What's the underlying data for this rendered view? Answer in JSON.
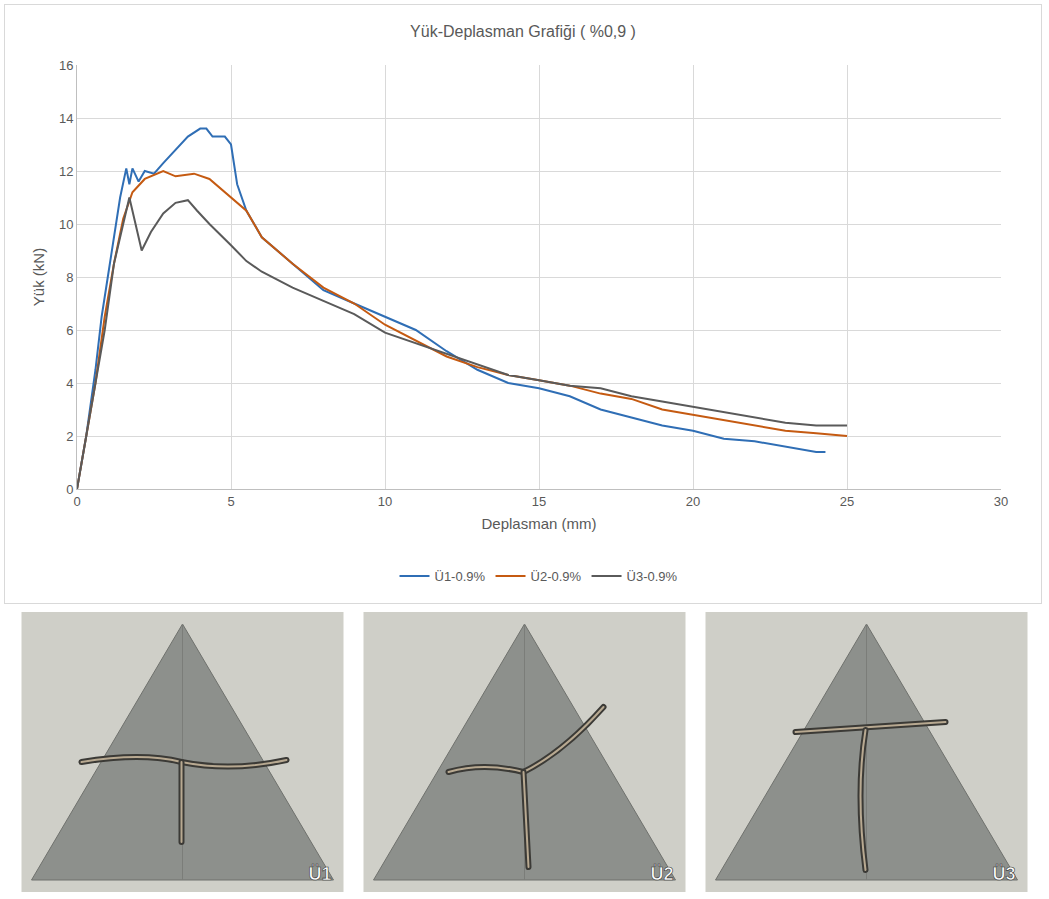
{
  "chart_data": {
    "type": "line",
    "title": "Yük-Deplasman Grafiği ( %0,9 )",
    "x_label": "Deplasman (mm)",
    "y_label": "Yük (kN)",
    "xlim": [
      0,
      30
    ],
    "xticks": [
      0,
      5,
      10,
      15,
      20,
      25,
      30
    ],
    "ylim": [
      0,
      16
    ],
    "yticks": [
      0,
      2,
      4,
      6,
      8,
      10,
      12,
      14,
      16
    ],
    "grid": true,
    "legend": "bottom",
    "series": [
      {
        "name": "Ü1-0.9%",
        "color": "#2f6eb5",
        "x": [
          0,
          0.3,
          0.6,
          0.8,
          1.0,
          1.2,
          1.4,
          1.6,
          1.7,
          1.8,
          2.0,
          2.2,
          2.5,
          2.8,
          3.2,
          3.6,
          4.0,
          4.2,
          4.4,
          4.8,
          5.0,
          5.2,
          5.5,
          6,
          7,
          8,
          9,
          10,
          11,
          12,
          13,
          14,
          15,
          16,
          17,
          18,
          19,
          20,
          21,
          22,
          23,
          24,
          24.3
        ],
        "values": [
          0,
          2,
          4.5,
          6.5,
          8,
          9.5,
          11,
          12.1,
          11.5,
          12.1,
          11.6,
          12.0,
          11.9,
          12.3,
          12.8,
          13.3,
          13.6,
          13.6,
          13.3,
          13.3,
          13.0,
          11.5,
          10.5,
          9.5,
          8.5,
          7.5,
          7.0,
          6.5,
          6.0,
          5.2,
          4.5,
          4.0,
          3.8,
          3.5,
          3.0,
          2.7,
          2.4,
          2.2,
          1.9,
          1.8,
          1.6,
          1.4,
          1.4
        ]
      },
      {
        "name": "Ü2-0.9%",
        "color": "#c55a11",
        "x": [
          0,
          0.3,
          0.6,
          0.9,
          1.2,
          1.5,
          1.8,
          2.2,
          2.8,
          3.2,
          3.8,
          4.3,
          5,
          5.5,
          6,
          7,
          8,
          9,
          10,
          11,
          12,
          13,
          14,
          15,
          16,
          17,
          18,
          19,
          20,
          21,
          22,
          23,
          24,
          25
        ],
        "values": [
          0,
          2,
          4,
          6.5,
          8.5,
          10.2,
          11.2,
          11.7,
          12.0,
          11.8,
          11.9,
          11.7,
          11,
          10.5,
          9.5,
          8.5,
          7.6,
          7.0,
          6.2,
          5.6,
          5.0,
          4.6,
          4.3,
          4.1,
          3.9,
          3.6,
          3.4,
          3.0,
          2.8,
          2.6,
          2.4,
          2.2,
          2.1,
          2.0
        ]
      },
      {
        "name": "Ü3-0.9%",
        "color": "#5a5a5a",
        "x": [
          0,
          0.3,
          0.6,
          0.9,
          1.2,
          1.5,
          1.7,
          1.9,
          2.1,
          2.4,
          2.8,
          3.2,
          3.6,
          3.9,
          4.3,
          5,
          5.5,
          6,
          7,
          8,
          9,
          10,
          11,
          12,
          13,
          14,
          15,
          16,
          17,
          18,
          19,
          20,
          21,
          22,
          23,
          24,
          25
        ],
        "values": [
          0,
          2,
          4,
          6,
          8.5,
          10,
          11,
          10,
          9.0,
          9.7,
          10.4,
          10.8,
          10.9,
          10.5,
          10.0,
          9.2,
          8.6,
          8.2,
          7.6,
          7.1,
          6.6,
          5.9,
          5.5,
          5.1,
          4.7,
          4.3,
          4.1,
          3.9,
          3.8,
          3.5,
          3.3,
          3.1,
          2.9,
          2.7,
          2.5,
          2.4,
          2.4
        ]
      }
    ]
  },
  "panels": {
    "labels": [
      "Ü1",
      "Ü2",
      "Ü3"
    ]
  }
}
